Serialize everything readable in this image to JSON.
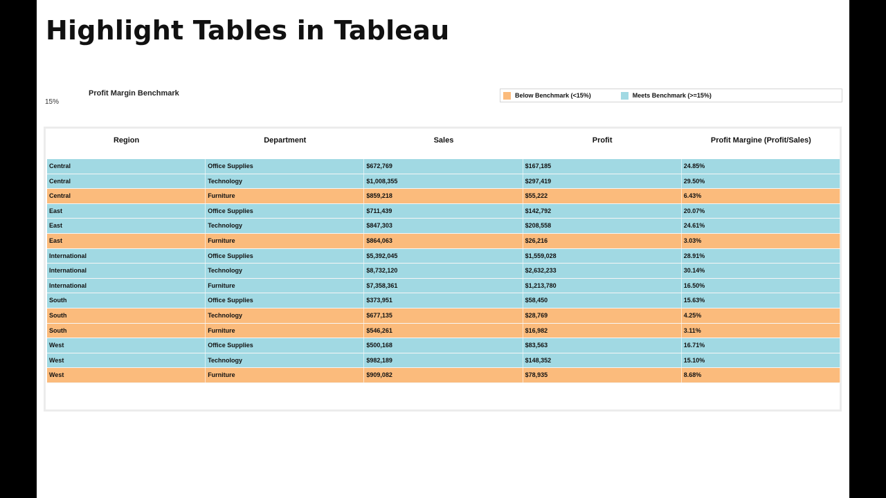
{
  "title": "Highlight Tables in Tableau",
  "parameter": {
    "label": "Profit Margin Benchmark",
    "value": "15%"
  },
  "legend": {
    "items": [
      {
        "label": "Below Benchmark (<15%)",
        "color": "#fbbb7c"
      },
      {
        "label": "Meets Benchmark (>=15%)",
        "color": "#a1d9e3"
      }
    ]
  },
  "colors": {
    "below": "#fbbb7c",
    "meets": "#a1d9e3"
  },
  "table": {
    "headers": [
      "Region",
      "Department",
      "Sales",
      "Profit",
      "Profit Margine (Profit/Sales)"
    ],
    "rows": [
      {
        "status": "meets",
        "cells": [
          "Central",
          "Office Supplies",
          "$672,769",
          "$167,185",
          "24.85%"
        ]
      },
      {
        "status": "meets",
        "cells": [
          "Central",
          "Technology",
          "$1,008,355",
          "$297,419",
          "29.50%"
        ]
      },
      {
        "status": "below",
        "cells": [
          "Central",
          "Furniture",
          "$859,218",
          "$55,222",
          "6.43%"
        ]
      },
      {
        "status": "meets",
        "cells": [
          "East",
          "Office Supplies",
          "$711,439",
          "$142,792",
          "20.07%"
        ]
      },
      {
        "status": "meets",
        "cells": [
          "East",
          "Technology",
          "$847,303",
          "$208,558",
          "24.61%"
        ]
      },
      {
        "status": "below",
        "cells": [
          "East",
          "Furniture",
          "$864,063",
          "$26,216",
          "3.03%"
        ]
      },
      {
        "status": "meets",
        "cells": [
          "International",
          "Office Supplies",
          "$5,392,045",
          "$1,559,028",
          "28.91%"
        ]
      },
      {
        "status": "meets",
        "cells": [
          "International",
          "Technology",
          "$8,732,120",
          "$2,632,233",
          "30.14%"
        ]
      },
      {
        "status": "meets",
        "cells": [
          "International",
          "Furniture",
          "$7,358,361",
          "$1,213,780",
          "16.50%"
        ]
      },
      {
        "status": "meets",
        "cells": [
          "South",
          "Office Supplies",
          "$373,951",
          "$58,450",
          "15.63%"
        ]
      },
      {
        "status": "below",
        "cells": [
          "South",
          "Technology",
          "$677,135",
          "$28,769",
          "4.25%"
        ]
      },
      {
        "status": "below",
        "cells": [
          "South",
          "Furniture",
          "$546,261",
          "$16,982",
          "3.11%"
        ]
      },
      {
        "status": "meets",
        "cells": [
          "West",
          "Office Supplies",
          "$500,168",
          "$83,563",
          "16.71%"
        ]
      },
      {
        "status": "meets",
        "cells": [
          "West",
          "Technology",
          "$982,189",
          "$148,352",
          "15.10%"
        ]
      },
      {
        "status": "below",
        "cells": [
          "West",
          "Furniture",
          "$909,082",
          "$78,935",
          "8.68%"
        ]
      }
    ]
  }
}
